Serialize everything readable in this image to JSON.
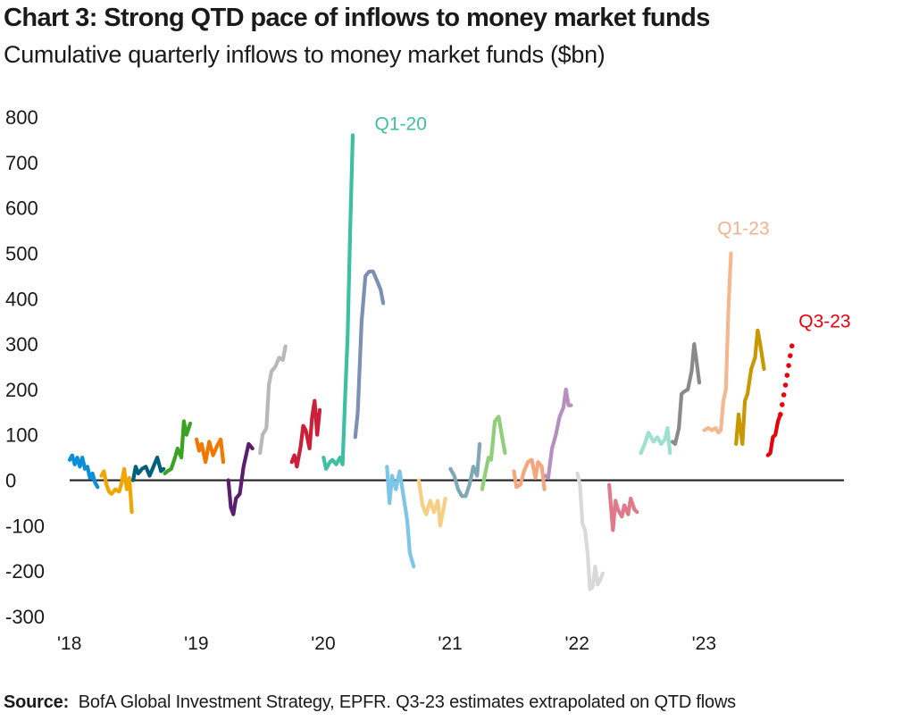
{
  "title": "Chart 3: Strong QTD pace of inflows to money market funds",
  "subtitle": "Cumulative quarterly inflows to money market funds ($bn)",
  "source_label": "Source:",
  "source_text": "BofA Global Investment Strategy, EPFR. Q3-23  estimates extrapolated on QTD flows",
  "chart_data": {
    "type": "line",
    "y_ticks": [
      "800",
      "700",
      "600",
      "500",
      "400",
      "300",
      "200",
      "100",
      "0",
      "-100",
      "-200",
      "-300"
    ],
    "y_values": [
      800,
      700,
      600,
      500,
      400,
      300,
      200,
      100,
      0,
      -100,
      -200,
      -300
    ],
    "ylim": [
      -300,
      800
    ],
    "x_ticks": [
      "'18",
      "'19",
      "'20",
      "'21",
      "'22",
      "'23"
    ],
    "x_tick_values": [
      2018,
      2019,
      2020,
      2021,
      2022,
      2023
    ],
    "xlim": [
      2018,
      2024.1
    ],
    "grid": false,
    "zero_line": true,
    "annotations": [
      {
        "text": "Q1-20",
        "x": 2020.6,
        "y": 785,
        "color": "#3dbfa3"
      },
      {
        "text": "Q1-23",
        "x": 2023.3,
        "y": 555,
        "color": "#f2b28c"
      },
      {
        "text": "Q3-23",
        "x": 2023.94,
        "y": 350,
        "color": "#e8000b"
      }
    ],
    "series": [
      {
        "color": "#0a8fd8",
        "points": [
          [
            2018.0,
            45
          ],
          [
            2018.02,
            55
          ],
          [
            2018.04,
            35
          ],
          [
            2018.06,
            50
          ],
          [
            2018.08,
            30
          ],
          [
            2018.1,
            50
          ],
          [
            2018.12,
            25
          ],
          [
            2018.14,
            30
          ],
          [
            2018.16,
            5
          ],
          [
            2018.18,
            15
          ],
          [
            2018.2,
            -5
          ],
          [
            2018.22,
            -15
          ]
        ]
      },
      {
        "color": "#f0a500",
        "points": [
          [
            2018.25,
            10
          ],
          [
            2018.27,
            20
          ],
          [
            2018.29,
            -10
          ],
          [
            2018.31,
            -25
          ],
          [
            2018.33,
            -30
          ],
          [
            2018.36,
            -20
          ],
          [
            2018.39,
            -25
          ],
          [
            2018.41,
            -5
          ],
          [
            2018.43,
            25
          ],
          [
            2018.45,
            -20
          ],
          [
            2018.47,
            5
          ],
          [
            2018.49,
            -70
          ]
        ]
      },
      {
        "color": "#00607a",
        "points": [
          [
            2018.5,
            0
          ],
          [
            2018.52,
            30
          ],
          [
            2018.54,
            15
          ],
          [
            2018.57,
            25
          ],
          [
            2018.6,
            30
          ],
          [
            2018.63,
            10
          ],
          [
            2018.66,
            30
          ],
          [
            2018.69,
            50
          ],
          [
            2018.72,
            20
          ],
          [
            2018.74,
            25
          ]
        ]
      },
      {
        "color": "#3aa321",
        "points": [
          [
            2018.75,
            15
          ],
          [
            2018.77,
            20
          ],
          [
            2018.8,
            25
          ],
          [
            2018.83,
            50
          ],
          [
            2018.85,
            70
          ],
          [
            2018.88,
            50
          ],
          [
            2018.9,
            130
          ],
          [
            2018.92,
            100
          ],
          [
            2018.95,
            125
          ]
        ]
      },
      {
        "color": "#f07800",
        "points": [
          [
            2019.0,
            90
          ],
          [
            2019.02,
            65
          ],
          [
            2019.04,
            80
          ],
          [
            2019.07,
            40
          ],
          [
            2019.1,
            85
          ],
          [
            2019.13,
            55
          ],
          [
            2019.16,
            75
          ],
          [
            2019.19,
            90
          ],
          [
            2019.21,
            40
          ]
        ]
      },
      {
        "color": "#5a1e6e",
        "points": [
          [
            2019.25,
            0
          ],
          [
            2019.27,
            -60
          ],
          [
            2019.29,
            -75
          ],
          [
            2019.31,
            -40
          ],
          [
            2019.34,
            -30
          ],
          [
            2019.37,
            30
          ],
          [
            2019.41,
            80
          ],
          [
            2019.44,
            70
          ]
        ]
      },
      {
        "color": "#b8b8b8",
        "points": [
          [
            2019.5,
            60
          ],
          [
            2019.52,
            100
          ],
          [
            2019.55,
            115
          ],
          [
            2019.57,
            210
          ],
          [
            2019.59,
            240
          ],
          [
            2019.62,
            250
          ],
          [
            2019.65,
            270
          ],
          [
            2019.68,
            265
          ],
          [
            2019.7,
            295
          ]
        ]
      },
      {
        "color": "#cc1f3a",
        "points": [
          [
            2019.75,
            40
          ],
          [
            2019.77,
            55
          ],
          [
            2019.79,
            30
          ],
          [
            2019.82,
            75
          ],
          [
            2019.84,
            120
          ],
          [
            2019.86,
            110
          ],
          [
            2019.89,
            70
          ],
          [
            2019.91,
            140
          ],
          [
            2019.93,
            175
          ],
          [
            2019.95,
            100
          ],
          [
            2019.97,
            155
          ]
        ]
      },
      {
        "color": "#3dbfa3",
        "points": [
          [
            2020.0,
            50
          ],
          [
            2020.02,
            25
          ],
          [
            2020.05,
            40
          ],
          [
            2020.07,
            45
          ],
          [
            2020.1,
            35
          ],
          [
            2020.13,
            50
          ],
          [
            2020.15,
            35
          ],
          [
            2020.17,
            180
          ],
          [
            2020.19,
            320
          ],
          [
            2020.21,
            550
          ],
          [
            2020.23,
            760
          ]
        ]
      },
      {
        "color": "#7d8fb5",
        "points": [
          [
            2020.25,
            95
          ],
          [
            2020.27,
            150
          ],
          [
            2020.3,
            350
          ],
          [
            2020.33,
            450
          ],
          [
            2020.36,
            460
          ],
          [
            2020.39,
            460
          ],
          [
            2020.42,
            440
          ],
          [
            2020.45,
            420
          ],
          [
            2020.47,
            390
          ]
        ]
      },
      {
        "color": "#7cc6e8",
        "points": [
          [
            2020.5,
            30
          ],
          [
            2020.52,
            -50
          ],
          [
            2020.54,
            10
          ],
          [
            2020.57,
            -20
          ],
          [
            2020.6,
            20
          ],
          [
            2020.63,
            -35
          ],
          [
            2020.66,
            -90
          ],
          [
            2020.68,
            -160
          ],
          [
            2020.71,
            -190
          ]
        ]
      },
      {
        "color": "#f7cf84",
        "points": [
          [
            2020.75,
            0
          ],
          [
            2020.78,
            -55
          ],
          [
            2020.81,
            -75
          ],
          [
            2020.84,
            -45
          ],
          [
            2020.87,
            -70
          ],
          [
            2020.9,
            -45
          ],
          [
            2020.92,
            -100
          ],
          [
            2020.94,
            -70
          ],
          [
            2020.96,
            -40
          ]
        ]
      },
      {
        "color": "#7fa8b6",
        "points": [
          [
            2021.0,
            25
          ],
          [
            2021.03,
            10
          ],
          [
            2021.06,
            -20
          ],
          [
            2021.09,
            -35
          ],
          [
            2021.12,
            -35
          ],
          [
            2021.15,
            -10
          ],
          [
            2021.18,
            30
          ],
          [
            2021.21,
            10
          ],
          [
            2021.23,
            80
          ]
        ]
      },
      {
        "color": "#8ed07a",
        "points": [
          [
            2021.25,
            -20
          ],
          [
            2021.27,
            10
          ],
          [
            2021.3,
            50
          ],
          [
            2021.32,
            45
          ],
          [
            2021.35,
            130
          ],
          [
            2021.38,
            140
          ],
          [
            2021.41,
            90
          ],
          [
            2021.43,
            60
          ]
        ]
      },
      {
        "color": "#f4a77c",
        "points": [
          [
            2021.5,
            20
          ],
          [
            2021.52,
            -15
          ],
          [
            2021.55,
            -10
          ],
          [
            2021.58,
            20
          ],
          [
            2021.61,
            40
          ],
          [
            2021.64,
            45
          ],
          [
            2021.67,
            5
          ],
          [
            2021.69,
            40
          ],
          [
            2021.72,
            30
          ],
          [
            2021.74,
            -20
          ]
        ]
      },
      {
        "color": "#b68fc0",
        "points": [
          [
            2021.75,
            10
          ],
          [
            2021.77,
            5
          ],
          [
            2021.8,
            70
          ],
          [
            2021.83,
            100
          ],
          [
            2021.86,
            140
          ],
          [
            2021.89,
            160
          ],
          [
            2021.91,
            200
          ],
          [
            2021.93,
            165
          ],
          [
            2021.95,
            165
          ]
        ]
      },
      {
        "color": "#d9d9d9",
        "points": [
          [
            2022.0,
            15
          ],
          [
            2022.02,
            -10
          ],
          [
            2022.04,
            -95
          ],
          [
            2022.06,
            -110
          ],
          [
            2022.08,
            -160
          ],
          [
            2022.1,
            -240
          ],
          [
            2022.12,
            -235
          ],
          [
            2022.14,
            -190
          ],
          [
            2022.16,
            -230
          ],
          [
            2022.18,
            -220
          ],
          [
            2022.2,
            -205
          ]
        ]
      },
      {
        "color": "#e07a8a",
        "points": [
          [
            2022.25,
            -10
          ],
          [
            2022.28,
            -110
          ],
          [
            2022.3,
            -45
          ],
          [
            2022.32,
            -65
          ],
          [
            2022.35,
            -80
          ],
          [
            2022.37,
            -55
          ],
          [
            2022.4,
            -75
          ],
          [
            2022.42,
            -40
          ],
          [
            2022.45,
            -65
          ],
          [
            2022.47,
            -70
          ]
        ]
      },
      {
        "color": "#9de0cf",
        "points": [
          [
            2022.5,
            60
          ],
          [
            2022.53,
            80
          ],
          [
            2022.56,
            105
          ],
          [
            2022.6,
            85
          ],
          [
            2022.63,
            95
          ],
          [
            2022.66,
            80
          ],
          [
            2022.69,
            90
          ],
          [
            2022.71,
            115
          ],
          [
            2022.73,
            60
          ]
        ]
      },
      {
        "color": "#8a8a8a",
        "points": [
          [
            2022.75,
            85
          ],
          [
            2022.77,
            80
          ],
          [
            2022.8,
            115
          ],
          [
            2022.82,
            190
          ],
          [
            2022.84,
            195
          ],
          [
            2022.87,
            200
          ],
          [
            2022.9,
            240
          ],
          [
            2022.92,
            300
          ],
          [
            2022.94,
            260
          ],
          [
            2022.96,
            215
          ]
        ]
      },
      {
        "color": "#f4b890",
        "points": [
          [
            2023.0,
            110
          ],
          [
            2023.03,
            115
          ],
          [
            2023.06,
            110
          ],
          [
            2023.09,
            115
          ],
          [
            2023.11,
            105
          ],
          [
            2023.13,
            110
          ],
          [
            2023.15,
            175
          ],
          [
            2023.17,
            200
          ],
          [
            2023.19,
            380
          ],
          [
            2023.21,
            500
          ]
        ]
      },
      {
        "color": "#c99700",
        "points": [
          [
            2023.25,
            80
          ],
          [
            2023.27,
            145
          ],
          [
            2023.3,
            80
          ],
          [
            2023.32,
            175
          ],
          [
            2023.34,
            190
          ],
          [
            2023.37,
            245
          ],
          [
            2023.4,
            270
          ],
          [
            2023.42,
            330
          ],
          [
            2023.44,
            300
          ],
          [
            2023.47,
            245
          ]
        ]
      },
      {
        "color": "#e8000b",
        "points": [
          [
            2023.5,
            55
          ],
          [
            2023.52,
            60
          ],
          [
            2023.54,
            95
          ],
          [
            2023.56,
            100
          ],
          [
            2023.58,
            130
          ],
          [
            2023.6,
            145
          ]
        ]
      },
      {
        "color": "#e8000b",
        "dotted": true,
        "points": [
          [
            2023.6,
            145
          ],
          [
            2023.62,
            178
          ],
          [
            2023.64,
            210
          ],
          [
            2023.66,
            245
          ],
          [
            2023.68,
            280
          ],
          [
            2023.7,
            310
          ]
        ]
      }
    ]
  }
}
